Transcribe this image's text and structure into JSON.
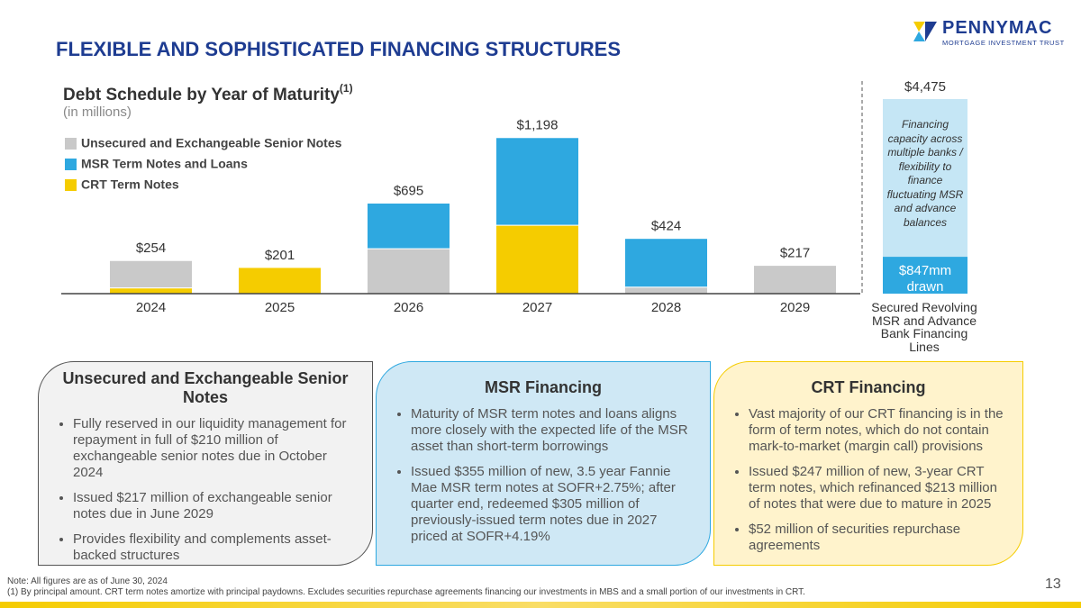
{
  "header": {
    "title": "FLEXIBLE AND SOPHISTICATED FINANCING STRUCTURES",
    "logo_name": "PENNYMAC",
    "logo_sub": "MORTGAGE INVESTMENT TRUST"
  },
  "chart_data": {
    "type": "stacked_bar",
    "title": "Debt Schedule by Year of Maturity",
    "title_superscript": "(1)",
    "subtitle": "(in millions)",
    "categories": [
      "2024",
      "2025",
      "2026",
      "2027",
      "2028",
      "2029"
    ],
    "series": [
      {
        "name": "CRT Term Notes",
        "color": "#f5cc00",
        "values": [
          44,
          201,
          0,
          525,
          0,
          0
        ]
      },
      {
        "name": "Unsecured and Exchangeable Senior Notes",
        "color": "#c9c9c9",
        "values": [
          210,
          0,
          345,
          0,
          50,
          217
        ]
      },
      {
        "name": "MSR Term Notes and Loans",
        "color": "#2ea8e0",
        "values": [
          0,
          0,
          350,
          673,
          374,
          0
        ]
      }
    ],
    "legend_order": [
      1,
      2,
      0
    ],
    "totals": [
      254,
      201,
      695,
      1198,
      424,
      217
    ],
    "value_labels": [
      "$254",
      "$201",
      "$695",
      "$1,198",
      "$424",
      "$217"
    ],
    "ylim": [
      0,
      1300
    ],
    "facility": {
      "category": "Secured Revolving MSR and Advance Bank Financing Lines",
      "total": 4475,
      "total_label": "$4,475",
      "drawn": 847,
      "drawn_label": "$847mm drawn",
      "capacity_color": "#c5e6f5",
      "drawn_color": "#2ea8e0",
      "note": "Financing capacity across multiple banks / flexibility to finance fluctuating MSR and advance balances"
    }
  },
  "panels": [
    {
      "title": "Unsecured and Exchangeable Senior Notes",
      "bullets": [
        "Fully reserved in our liquidity management for repayment in full of $210 million of exchangeable senior notes due in October 2024",
        "Issued $217 million of exchangeable senior notes due in June 2029",
        "Provides flexibility and complements asset-backed structures"
      ]
    },
    {
      "title": "MSR Financing",
      "bullets": [
        "Maturity of MSR term notes and loans aligns more closely with the expected life of the MSR asset than short-term borrowings",
        "Issued $355 million of new, 3.5 year Fannie Mae MSR term notes at SOFR+2.75%; after quarter end, redeemed $305 million of previously-issued term notes due in 2027 priced at SOFR+4.19%"
      ]
    },
    {
      "title": "CRT Financing",
      "bullets": [
        "Vast majority of our CRT financing is in the form of term notes, which do not contain mark-to-market (margin call) provisions",
        "Issued $247 million of new, 3-year CRT term notes, which refinanced $213 million of notes that were due to mature in 2025",
        "$52 million of securities repurchase agreements"
      ]
    }
  ],
  "footer": {
    "note": "Note: All figures are as of June 30, 2024",
    "footnote": "(1) By principal amount. CRT term notes amortize with principal paydowns. Excludes securities repurchase agreements financing our investments in MBS and a small portion of our investments in CRT.",
    "page_number": "13"
  }
}
